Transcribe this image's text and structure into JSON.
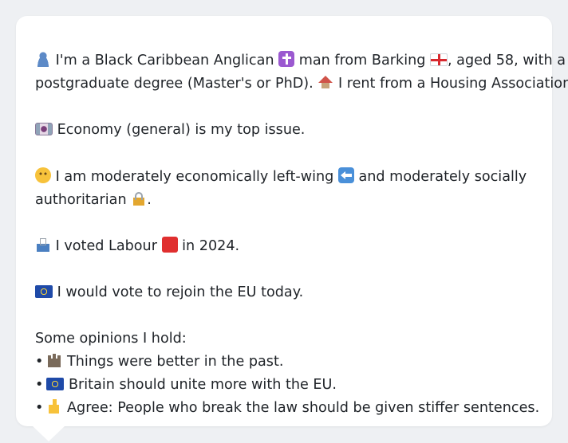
{
  "profile": {
    "intro_line1_a": "I'm a Black Caribbean Anglican",
    "intro_line1_b": "man from Barking",
    "intro_line1_c": ", aged 58, with a",
    "intro_line2_a": "postgraduate degree (Master's or PhD).",
    "intro_line2_b": "I rent from a Housing Association.",
    "top_issue": "Economy (general) is my top issue.",
    "stance_line1_a": "I am moderately economically left-wing",
    "stance_line1_b": "and moderately socially",
    "stance_line2": "authoritarian",
    "stance_line2_end": ".",
    "vote_a": "I voted Labour",
    "vote_b": "in 2024.",
    "eu_vote": "I would vote to rejoin the EU today.",
    "opinions_heading": "Some opinions I hold:",
    "bullet_char": "•",
    "opinions": [
      "Things were better in the past.",
      "Britain should unite more with the EU.",
      "Agree: People who break the law should be given stiffer sentences."
    ]
  },
  "icons": {
    "person": "person-icon",
    "religion": "latin-cross-icon",
    "place_flag": "england-flag-icon",
    "home": "house-icon",
    "issue": "money-icon",
    "thinking": "thinking-face-icon",
    "left": "left-arrow-icon",
    "authority": "lock-icon",
    "ballot": "ballot-box-icon",
    "party": "red-square-icon",
    "eu": "eu-flag-icon",
    "past": "castle-icon",
    "agree": "thumbs-up-icon"
  },
  "colors": {
    "background": "#eef0f3",
    "card": "#ffffff",
    "text": "#1f2328"
  }
}
